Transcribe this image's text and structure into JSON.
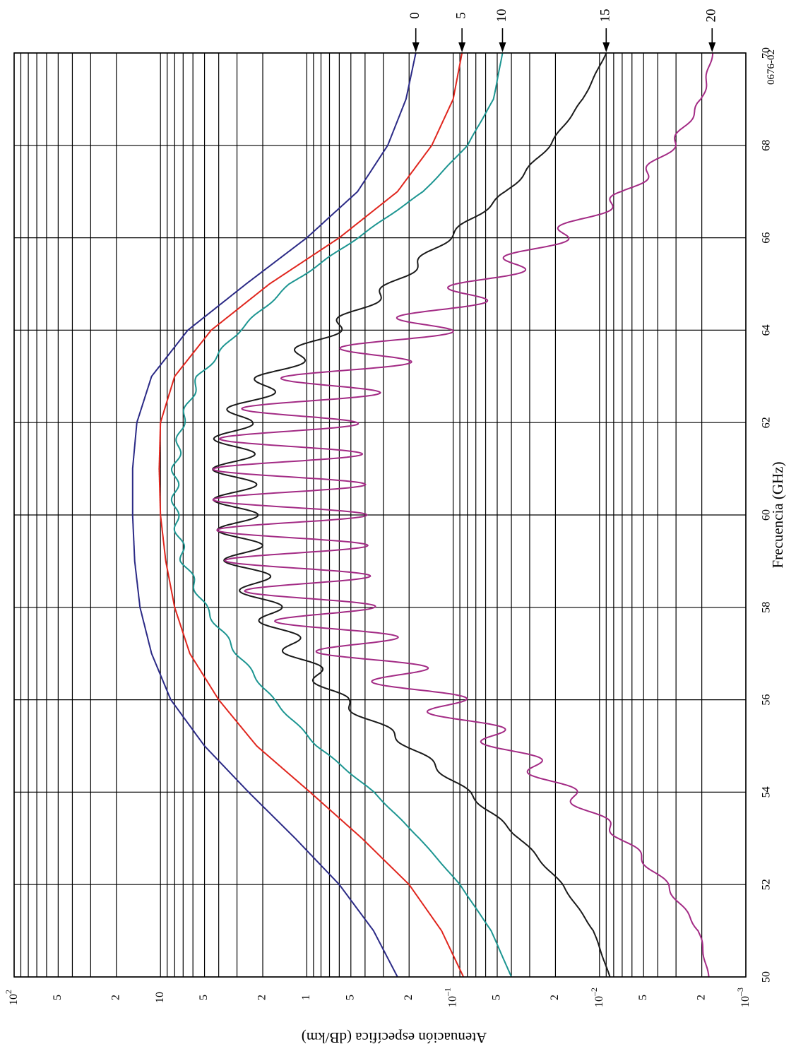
{
  "chart_data": {
    "type": "line",
    "xlabel": "Frecuencia (GHz)",
    "ylabel": "Atenuación específica (dB/km)",
    "figure_id": "0676-02",
    "xlim": [
      50,
      70
    ],
    "ylim": [
      0.001,
      100
    ],
    "yscale": "log",
    "grid": true,
    "x_ticks": [
      "50",
      "52",
      "54",
      "56",
      "58",
      "60",
      "62",
      "64",
      "66",
      "68",
      "70"
    ],
    "y_ticks": [
      {
        "value": 100,
        "base": "10",
        "exp": "2"
      },
      {
        "value": 50,
        "label": "5"
      },
      {
        "value": 20,
        "label": "2"
      },
      {
        "value": 10,
        "label": "10"
      },
      {
        "value": 5,
        "label": "5"
      },
      {
        "value": 2,
        "label": "2"
      },
      {
        "value": 1,
        "label": "1"
      },
      {
        "value": 0.5,
        "label": "5"
      },
      {
        "value": 0.2,
        "label": "2"
      },
      {
        "value": 0.1,
        "base": "10",
        "exp": "–1"
      },
      {
        "value": 0.05,
        "label": "5"
      },
      {
        "value": 0.02,
        "label": "2"
      },
      {
        "value": 0.01,
        "base": "10",
        "exp": "–2"
      },
      {
        "value": 0.005,
        "label": "5"
      },
      {
        "value": 0.002,
        "label": "2"
      },
      {
        "value": 0.001,
        "base": "10",
        "exp": "–3"
      }
    ],
    "series": [
      {
        "name": "0",
        "color": "#2b2a86",
        "ripple": 0,
        "x": [
          50,
          51,
          52,
          53,
          54,
          55,
          56,
          57,
          58,
          59,
          60,
          61,
          62,
          63,
          64,
          65,
          66,
          67,
          68,
          69,
          70
        ],
        "y": [
          0.24,
          0.35,
          0.6,
          1.2,
          2.5,
          5.0,
          8.5,
          11.5,
          13.8,
          15.0,
          15.5,
          15.5,
          14.5,
          11.5,
          6.5,
          2.6,
          1.0,
          0.45,
          0.28,
          0.21,
          0.18
        ]
      },
      {
        "name": "5",
        "color": "#e0261e",
        "ripple": 0,
        "x": [
          50,
          51,
          52,
          53,
          54,
          55,
          56,
          57,
          58,
          59,
          60,
          61,
          62,
          63,
          64,
          65,
          66,
          67,
          68,
          69,
          70
        ],
        "y": [
          0.085,
          0.12,
          0.2,
          0.42,
          0.95,
          2.2,
          4.0,
          6.3,
          8.0,
          9.2,
          10.0,
          10.2,
          10.0,
          8.0,
          4.5,
          1.8,
          0.6,
          0.24,
          0.14,
          0.1,
          0.087
        ]
      },
      {
        "name": "10",
        "color": "#1c9591",
        "ripple": 0.05,
        "x": [
          50,
          51,
          52,
          53,
          54,
          55,
          56,
          57,
          58,
          59,
          60,
          61,
          62,
          63,
          64,
          65,
          66,
          67,
          68,
          69,
          70
        ],
        "y": [
          0.04,
          0.055,
          0.09,
          0.17,
          0.35,
          0.85,
          1.7,
          3.0,
          5.0,
          7.0,
          8.0,
          8.0,
          7.2,
          5.5,
          2.9,
          1.3,
          0.45,
          0.16,
          0.08,
          0.053,
          0.046
        ]
      },
      {
        "name": "15",
        "color": "#1a1a1a",
        "ripple": 0.3,
        "x": [
          50,
          51,
          52,
          53,
          54,
          55,
          56,
          57,
          58,
          59,
          60,
          61,
          62,
          63,
          64,
          65,
          66,
          67,
          68,
          69,
          70
        ],
        "y": [
          0.0085,
          0.011,
          0.018,
          0.035,
          0.08,
          0.2,
          0.6,
          1.2,
          2.0,
          2.8,
          3.2,
          3.3,
          3.3,
          1.8,
          0.7,
          0.26,
          0.11,
          0.043,
          0.022,
          0.013,
          0.009
        ]
      },
      {
        "name": "20",
        "color": "#a32b85",
        "ripple": 1.05,
        "x": [
          50,
          51,
          52,
          53,
          54,
          55,
          56,
          57,
          58,
          59,
          60,
          61,
          62,
          63,
          64,
          65,
          66,
          67,
          68,
          69,
          70
        ],
        "y": [
          0.0018,
          0.0021,
          0.0035,
          0.007,
          0.017,
          0.045,
          0.14,
          0.45,
          1.0,
          1.4,
          1.55,
          1.6,
          1.5,
          0.7,
          0.2,
          0.07,
          0.021,
          0.0065,
          0.0032,
          0.002,
          0.0017
        ]
      }
    ]
  }
}
